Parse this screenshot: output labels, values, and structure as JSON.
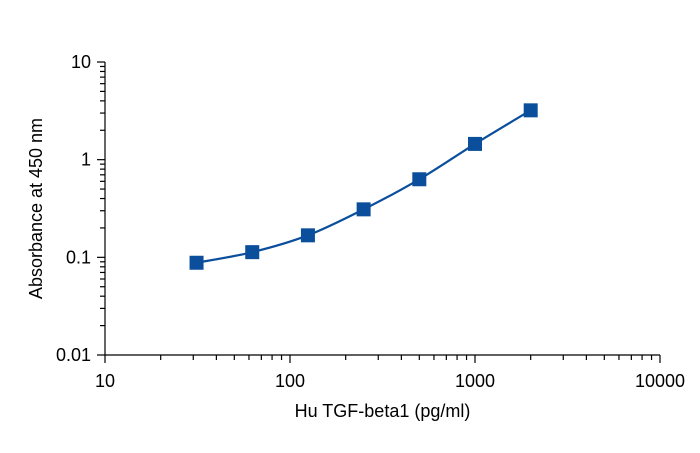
{
  "chart_data": {
    "type": "line",
    "title": "",
    "xlabel": "Hu TGF-beta1 (pg/ml)",
    "ylabel": "Absorbance at 450 nm",
    "xscale": "log",
    "yscale": "log",
    "xlim": [
      10,
      10000
    ],
    "ylim": [
      0.01,
      10
    ],
    "x_ticks": [
      10,
      100,
      1000,
      10000
    ],
    "x_tick_labels": [
      "10",
      "100",
      "1000",
      "10000"
    ],
    "y_ticks": [
      0.01,
      0.1,
      1,
      10
    ],
    "y_tick_labels": [
      "0.01",
      "0.1",
      "1",
      "10"
    ],
    "grid": false,
    "legend": "none",
    "color": "#0b4f9c",
    "marker": "square",
    "series": [
      {
        "x": [
          31.25,
          62.5,
          125,
          250,
          500,
          1000,
          2000
        ],
        "y": [
          0.088,
          0.113,
          0.168,
          0.31,
          0.63,
          1.45,
          3.2
        ]
      }
    ]
  }
}
